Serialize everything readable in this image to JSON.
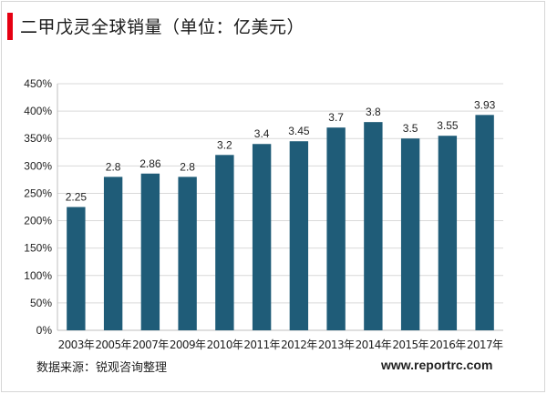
{
  "title": "二甲戊灵全球销量（单位：亿美元）",
  "source": "数据来源：锐观咨询整理",
  "site": "www.reportrc.com",
  "colors": {
    "bar": "#1f5c78",
    "accent": "#e60012"
  },
  "chart_data": {
    "type": "bar",
    "categories": [
      "2003年",
      "2005年",
      "2007年",
      "2009年",
      "2010年",
      "2011年",
      "2012年",
      "2013年",
      "2014年",
      "2015年",
      "2016年",
      "2017年"
    ],
    "values": [
      2.25,
      2.8,
      2.86,
      2.8,
      3.2,
      3.4,
      3.45,
      3.7,
      3.8,
      3.5,
      3.55,
      3.93
    ],
    "data_labels": [
      "2.25",
      "2.8",
      "2.86",
      "2.8",
      "3.2",
      "3.4",
      "3.45",
      "3.7",
      "3.8",
      "3.5",
      "3.55",
      "3.93"
    ],
    "y_ticks": [
      "0%",
      "50%",
      "100%",
      "150%",
      "200%",
      "250%",
      "300%",
      "350%",
      "400%",
      "450%"
    ],
    "ylim": [
      0,
      4.5
    ],
    "grid": true,
    "legend": "none"
  }
}
